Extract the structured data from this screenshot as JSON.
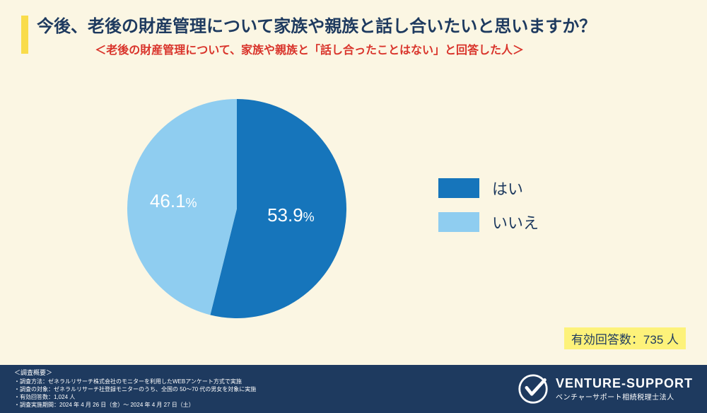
{
  "colors": {
    "background": "#fbf6e3",
    "title_text": "#1e3a5f",
    "subtitle_text": "#d9342b",
    "accent_bar": "#f9dc4a",
    "footer_bg": "#1e3a5f",
    "footer_text": "#ffffff",
    "respondents_bg": "#fdf27a",
    "respondents_text": "#1e3a5f",
    "legend_text": "#1e3a5f"
  },
  "title": "今後、老後の財産管理について家族や親族と話し合いたいと思いますか？",
  "subtitle": "＜老後の財産管理について、家族や親族と「話し合ったことはない」と回答した人＞",
  "chart": {
    "type": "pie",
    "segments": [
      {
        "label": "はい",
        "value": 53.9,
        "color": "#1675bb",
        "text_color": "#ffffff"
      },
      {
        "label": "いいえ",
        "value": 46.1,
        "color": "#8fcdf0",
        "text_color": "#ffffff"
      }
    ],
    "start_angle_deg": -90,
    "label_fontsize": 26,
    "pct_fontsize": 18
  },
  "legend": {
    "swatch_w": 58,
    "swatch_h": 28,
    "fontsize": 22
  },
  "respondents": {
    "label": "有効回答数：",
    "value": "735 人"
  },
  "footer": {
    "header": "＜調査概要＞",
    "lines": [
      "・調査方法：ゼネラルリサーチ株式会社のモニターを利用したWEBアンケート方式で実施",
      "・調査の対象：ゼネラルリサーチ社登録モニターのうち、全国の 50～70 代の男女を対象に実施",
      "・有効回答数：1,024 人",
      "・調査実施期間：2024 年 4 月 26 日（金）～ 2024 年 4 月 27 日（土）"
    ]
  },
  "brand": {
    "name": "VENTURE-SUPPORT",
    "tagline": "ベンチャーサポート相続税理士法人",
    "logo_color": "#ffffff",
    "text_color": "#ffffff"
  }
}
